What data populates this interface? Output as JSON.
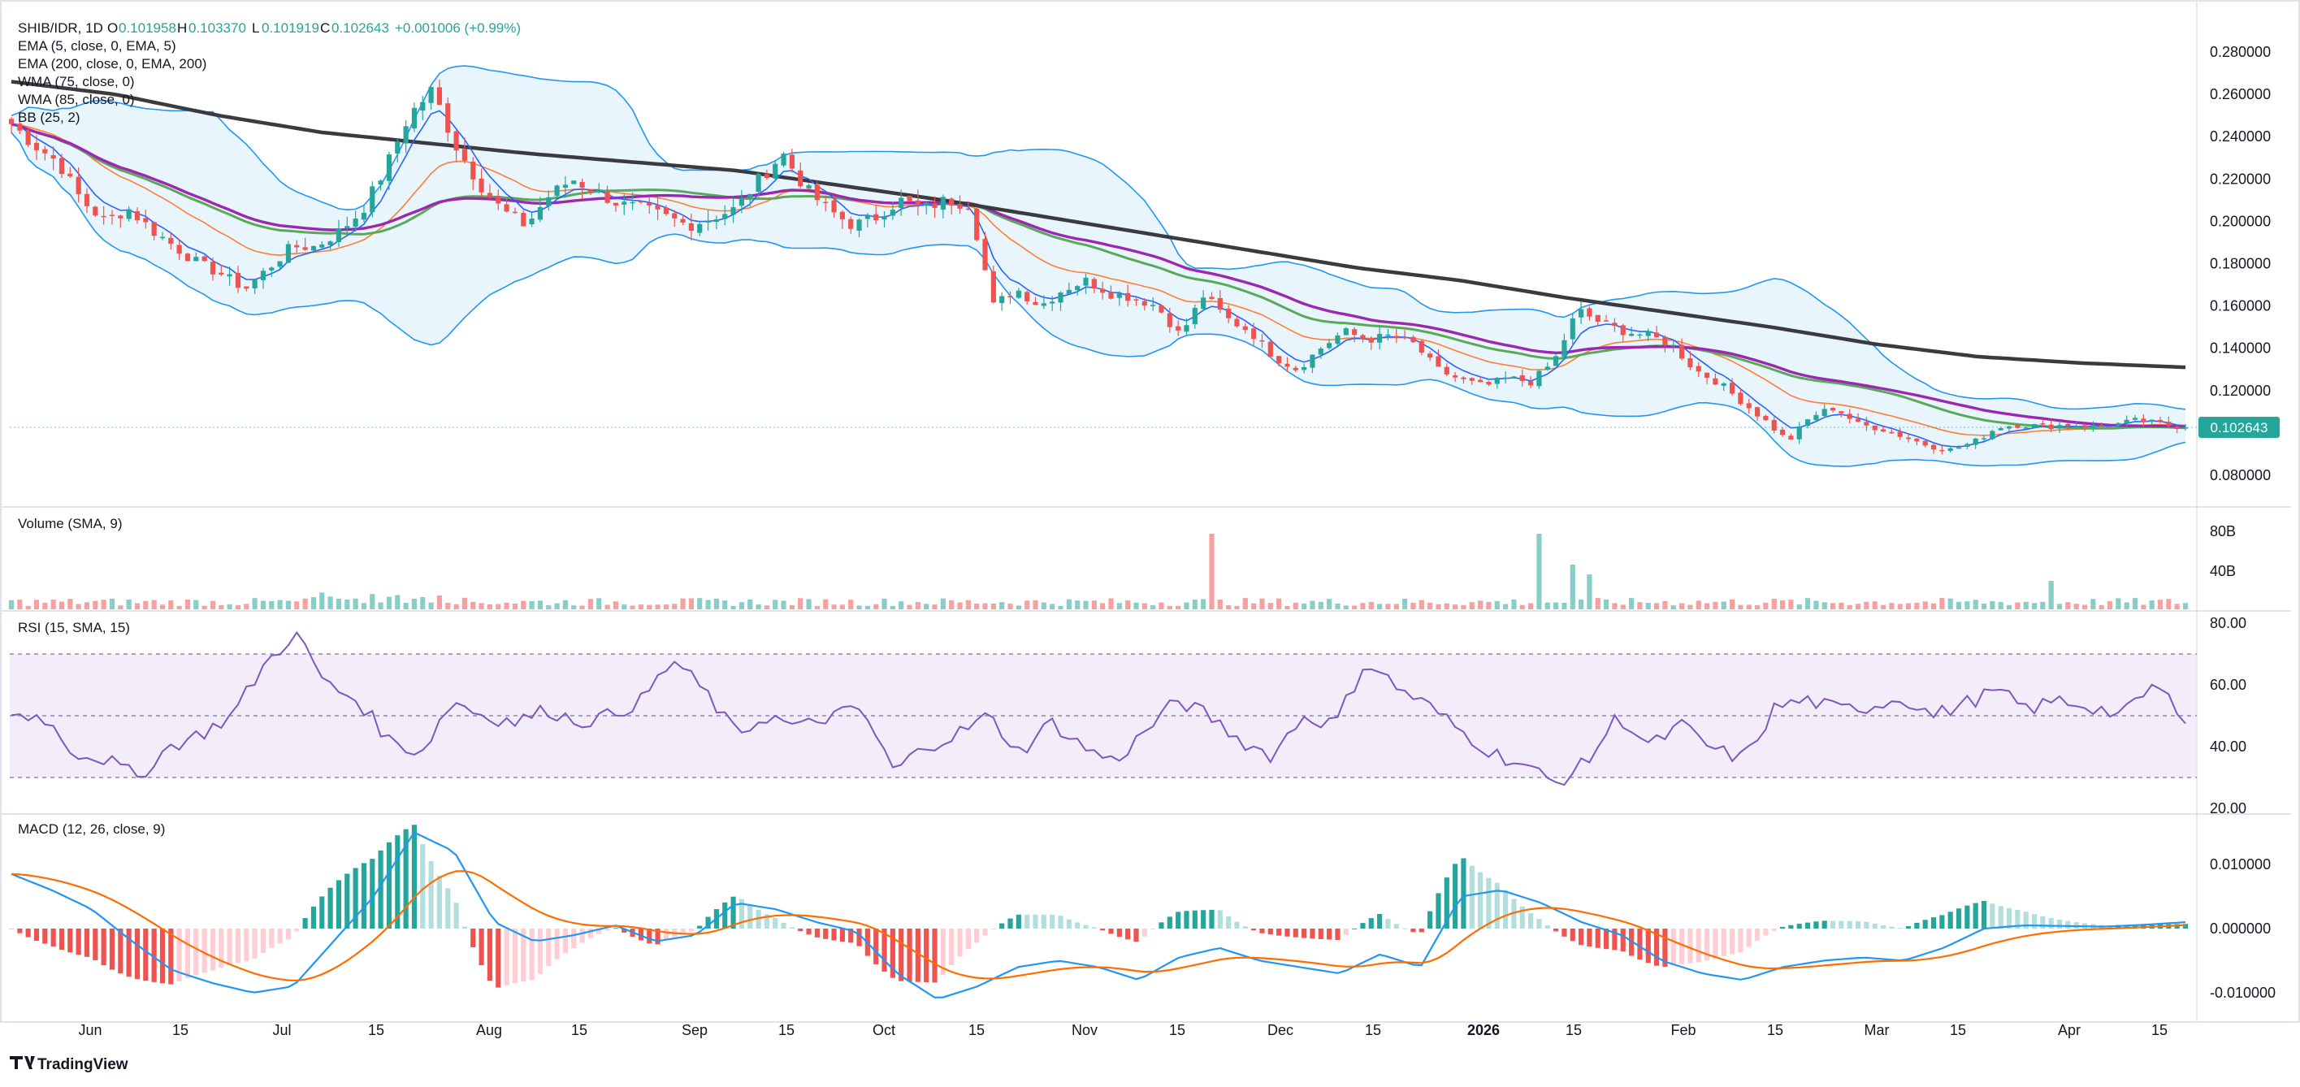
{
  "header": {
    "symbol": "SHIB/IDR, 1D",
    "o_label": "O",
    "o_value": "0.101958",
    "h_label": "H",
    "h_value": "0.103370",
    "l_label": "L",
    "l_value": "0.101919",
    "c_label": "C",
    "c_value": "0.102643",
    "change": "+0.001006 (+0.99%)"
  },
  "indicators": {
    "ema5": "EMA (5, close, 0, EMA, 5)",
    "ema200": "EMA (200, close, 0, EMA, 200)",
    "wma75": "WMA (75, close, 0)",
    "wma85": "WMA (85, close, 0)",
    "bb": "BB (25, 2)",
    "volume": "Volume (SMA, 9)",
    "rsi": "RSI (15, SMA, 15)",
    "macd": "MACD (12, 26, close, 9)"
  },
  "price_tag": "0.102643",
  "branding": "TradingView",
  "colors": {
    "up": "#26a69a",
    "down": "#ef5350",
    "ema5": "#2962ff",
    "ema200": "#3a3a3f",
    "wma75": "#5aa85a",
    "wma85": "#9c27b0",
    "bb": "#2196f3",
    "bb_fill": "#e3f2fd",
    "rsi": "#7e57c2",
    "rsi_band": "#ede7f6",
    "macd": "#2196f3",
    "signal": "#ff6d00",
    "price_tag_bg": "#26a69a"
  },
  "chart_data": {
    "type": "candlestick",
    "x_tick_labels": [
      "Jun",
      "15",
      "Jul",
      "15",
      "Aug",
      "15",
      "Sep",
      "15",
      "Oct",
      "15",
      "Nov",
      "15",
      "Dec",
      "15",
      "2026",
      "15",
      "Feb",
      "15",
      "Mar",
      "15",
      "Apr",
      "15"
    ],
    "price_axis": {
      "ticks": [
        "0.280000",
        "0.260000",
        "0.240000",
        "0.220000",
        "0.200000",
        "0.180000",
        "0.160000",
        "0.140000",
        "0.120000",
        "0.100000",
        "0.080000"
      ],
      "range": [
        0.07,
        0.29
      ]
    },
    "volume_axis": {
      "ticks": [
        "80B",
        "40B"
      ],
      "range": [
        0,
        100
      ]
    },
    "rsi_axis": {
      "ticks": [
        "80.00",
        "60.00",
        "40.00",
        "20.00"
      ],
      "range": [
        20,
        80
      ],
      "bands": [
        70,
        50,
        30
      ]
    },
    "macd_axis": {
      "ticks": [
        "0.010000",
        "0.000000",
        "-0.010000"
      ],
      "range": [
        -0.012,
        0.016
      ]
    },
    "close_anchors": [
      0.246,
      0.236,
      0.228,
      0.21,
      0.2,
      0.206,
      0.196,
      0.188,
      0.18,
      0.175,
      0.168,
      0.178,
      0.188,
      0.188,
      0.195,
      0.205,
      0.225,
      0.25,
      0.262,
      0.236,
      0.218,
      0.205,
      0.198,
      0.212,
      0.22,
      0.214,
      0.208,
      0.206,
      0.202,
      0.198,
      0.202,
      0.206,
      0.22,
      0.232,
      0.215,
      0.205,
      0.198,
      0.202,
      0.21,
      0.206,
      0.21,
      0.208,
      0.16,
      0.168,
      0.16,
      0.168,
      0.172,
      0.166,
      0.164,
      0.16,
      0.146,
      0.165,
      0.154,
      0.148,
      0.136,
      0.13,
      0.14,
      0.148,
      0.144,
      0.146,
      0.142,
      0.13,
      0.125,
      0.122,
      0.126,
      0.124,
      0.134,
      0.158,
      0.152,
      0.148,
      0.146,
      0.142,
      0.13,
      0.124,
      0.115,
      0.106,
      0.096,
      0.108,
      0.112,
      0.104,
      0.102,
      0.098,
      0.094,
      0.092,
      0.096,
      0.103,
      0.104,
      0.103,
      0.104,
      0.103,
      0.104,
      0.106,
      0.104,
      0.102643
    ],
    "ema200_anchors": [
      0.266,
      0.26,
      0.25,
      0.242,
      0.237,
      0.232,
      0.228,
      0.224,
      0.217,
      0.21,
      0.202,
      0.194,
      0.186,
      0.178,
      0.172,
      0.164,
      0.157,
      0.15,
      0.142,
      0.136,
      0.133,
      0.131
    ],
    "rsi_anchors": [
      50,
      50,
      38,
      36,
      30,
      40,
      44,
      50,
      66,
      77,
      60,
      55,
      42,
      38,
      55,
      50,
      48,
      52,
      48,
      50,
      55,
      68,
      58,
      44,
      50,
      46,
      50,
      52,
      32,
      40,
      44,
      50,
      38,
      48,
      40,
      35,
      45,
      55,
      50,
      42,
      37,
      50,
      47,
      68,
      59,
      53,
      45,
      38,
      34,
      28,
      35,
      50,
      40,
      47,
      39,
      36,
      53,
      55,
      52,
      53,
      56,
      50,
      54,
      58,
      52,
      55,
      53,
      50,
      60,
      50
    ],
    "macd_anchors": [
      0.0085,
      0.006,
      0.003,
      -0.002,
      -0.0065,
      -0.0085,
      -0.01,
      -0.009,
      -0.002,
      0.005,
      0.015,
      0.012,
      0.001,
      -0.002,
      -0.001,
      0.0005,
      -0.002,
      -0.001,
      0.004,
      0.003,
      0.001,
      -0.0005,
      -0.007,
      -0.011,
      -0.009,
      -0.006,
      -0.005,
      -0.006,
      -0.008,
      -0.0045,
      -0.003,
      -0.005,
      -0.006,
      -0.007,
      -0.004,
      -0.006,
      0.005,
      0.006,
      0.004,
      0.001,
      -0.001,
      -0.005,
      -0.007,
      -0.008,
      -0.006,
      -0.005,
      -0.0045,
      -0.005,
      -0.003,
      0.0,
      0.0005,
      0.0004,
      0.0003,
      0.0006,
      0.001
    ],
    "volume_spikes": {
      "bar_values": [
        93,
        93,
        55,
        43,
        35
      ]
    }
  }
}
